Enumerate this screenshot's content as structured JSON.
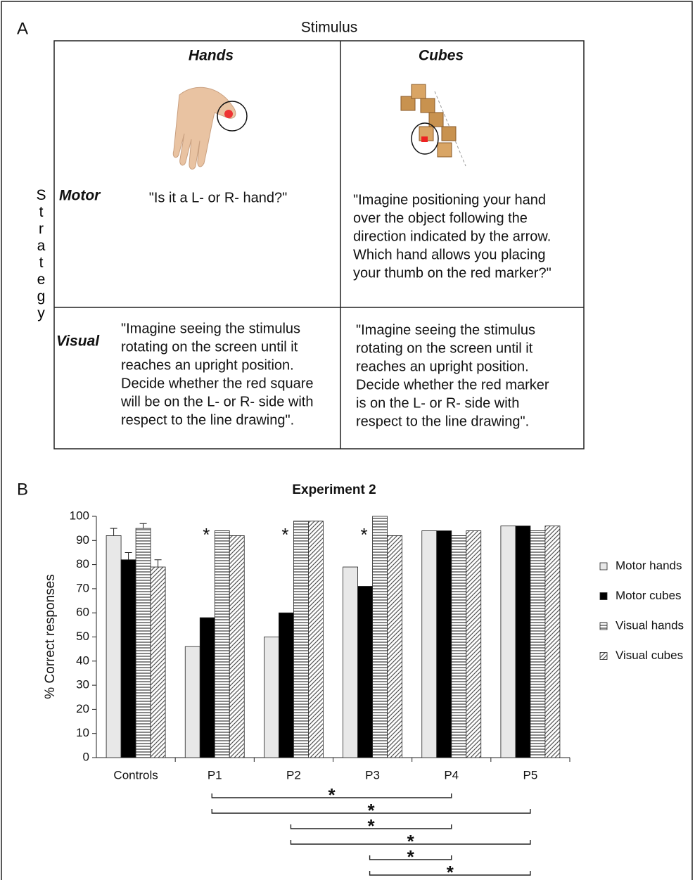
{
  "panel_a": {
    "label": "A",
    "title": "Stimulus",
    "row_axis": "Strategy",
    "columns": [
      "Hands",
      "Cubes"
    ],
    "rows": [
      "Motor",
      "Visual"
    ],
    "cells": [
      [
        [
          "\"Is it a L- or R- hand?\""
        ],
        [
          "\"Imagine positioning your hand",
          "over the object following the",
          "direction indicated by the arrow.",
          "Which hand allows you placing",
          "your thumb on the red marker?\""
        ]
      ],
      [
        [
          "\"Imagine seeing the stimulus",
          "rotating on the screen until it",
          "reaches an upright position.",
          "Decide whether the red square",
          "will be on the L- or R- side with",
          "respect to the line drawing\"."
        ],
        [
          "\"Imagine seeing the stimulus",
          "rotating on the screen until it",
          "reaches an upright position.",
          "Decide whether the red marker",
          "is on the L- or R- side with",
          "respect to the line drawing\"."
        ]
      ]
    ]
  },
  "chart_data": {
    "type": "bar",
    "label": "B",
    "title": "Experiment 2",
    "y_label": "% Correct responses",
    "categories": [
      "Controls",
      "P1",
      "P2",
      "P3",
      "P4",
      "P5"
    ],
    "series": [
      {
        "name": "Motor hands",
        "color": "#e8e8e8",
        "pattern": "solid",
        "values": [
          92,
          46,
          50,
          79,
          94,
          96
        ],
        "errors": [
          3,
          null,
          null,
          null,
          null,
          null
        ]
      },
      {
        "name": "Motor cubes",
        "color": "#000000",
        "pattern": "solid",
        "values": [
          82,
          58,
          60,
          71,
          94,
          96
        ],
        "errors": [
          3,
          null,
          null,
          null,
          null,
          null
        ]
      },
      {
        "name": "Visual hands",
        "color": "#555555",
        "pattern": "horizontal",
        "values": [
          95,
          94,
          98,
          100,
          92,
          94
        ],
        "errors": [
          2,
          null,
          null,
          null,
          null,
          null
        ]
      },
      {
        "name": "Visual cubes",
        "color": "#555555",
        "pattern": "diagonal",
        "values": [
          79,
          92,
          98,
          92,
          94,
          96
        ],
        "errors": [
          3,
          null,
          null,
          null,
          null,
          null
        ]
      }
    ],
    "ylim": [
      0,
      100
    ],
    "yticks": [
      0,
      10,
      20,
      30,
      40,
      50,
      60,
      70,
      80,
      90,
      100
    ],
    "stars": [
      {
        "at": "P1",
        "text": "*"
      },
      {
        "at": "P2",
        "text": "*"
      },
      {
        "at": "P3",
        "text": "*"
      }
    ],
    "brackets": [
      {
        "from": "P1",
        "to": "P4",
        "text": "*"
      },
      {
        "from": "P1",
        "to": "P5",
        "text": "*"
      },
      {
        "from": "P2",
        "to": "P4",
        "text": "*"
      },
      {
        "from": "P2",
        "to": "P5",
        "text": "*"
      },
      {
        "from": "P3",
        "to": "P4",
        "text": "*"
      },
      {
        "from": "P3",
        "to": "P5",
        "text": "*"
      }
    ]
  }
}
